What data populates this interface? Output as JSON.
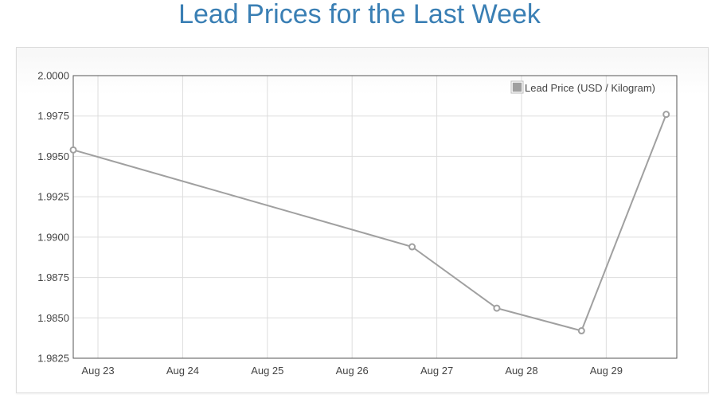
{
  "page": {
    "title": "Lead Prices for the Last Week"
  },
  "chart_data": {
    "type": "line",
    "title": "",
    "xlabel": "",
    "ylabel": "",
    "x_tick_labels": [
      "Aug 23",
      "Aug 24",
      "Aug 25",
      "Aug 26",
      "Aug 27",
      "Aug 28",
      "Aug 29"
    ],
    "y_tick_labels": [
      "2.0000",
      "1.9975",
      "1.9950",
      "1.9925",
      "1.9900",
      "1.9875",
      "1.9850",
      "1.9825"
    ],
    "ylim": [
      1.9825,
      2.0
    ],
    "xlim": [
      "2017-08-22 17:00",
      "2017-08-29 20:00"
    ],
    "grid": true,
    "legend_position": "top-right",
    "series": [
      {
        "name": "Lead Price (USD / Kilogram)",
        "color": "#a0a0a0",
        "points": [
          {
            "x": "2017-08-22 17:00",
            "y": 1.9954
          },
          {
            "x": "2017-08-26 17:00",
            "y": 1.9894
          },
          {
            "x": "2017-08-27 17:00",
            "y": 1.9856
          },
          {
            "x": "2017-08-28 17:00",
            "y": 1.9842
          },
          {
            "x": "2017-08-29 17:00",
            "y": 1.9976
          }
        ]
      }
    ]
  }
}
